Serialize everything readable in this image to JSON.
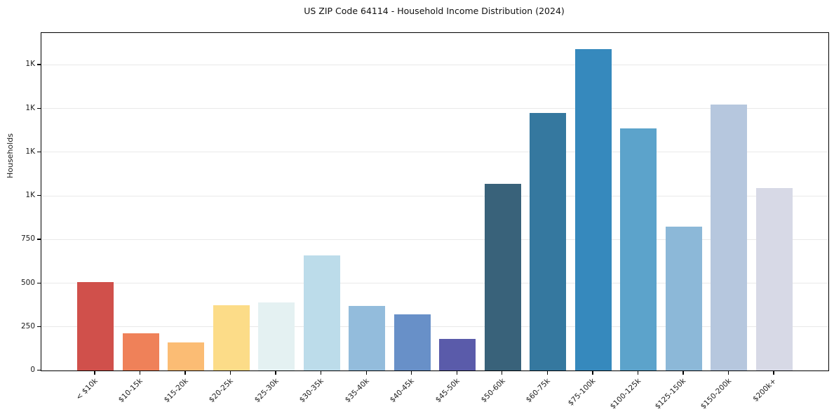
{
  "title": "US ZIP Code 64114 - Household Income Distribution (2024)",
  "chart_data": {
    "type": "bar",
    "title": "US ZIP Code 64114 - Household Income Distribution (2024)",
    "xlabel": "",
    "ylabel": "Households",
    "categories": [
      "< $10k",
      "$10-15k",
      "$15-20k",
      "$20-25k",
      "$25-30k",
      "$30-35k",
      "$35-40k",
      "$40-45k",
      "$45-50k",
      "$50-60k",
      "$60-75k",
      "$75-100k",
      "$100-125k",
      "$125-150k",
      "$150-200k",
      "$200k+"
    ],
    "values": [
      505,
      214,
      160,
      375,
      391,
      658,
      368,
      321,
      180,
      1070,
      1476,
      1840,
      1387,
      822,
      1521,
      1043
    ],
    "bar_colors": [
      "#d0504b",
      "#ef8159",
      "#fbbc74",
      "#fcdc88",
      "#e4f1f2",
      "#bcdcea",
      "#93bcdc",
      "#6890c8",
      "#5a5baa",
      "#39627a",
      "#35789f",
      "#3689bd",
      "#5ca3cb",
      "#8cb8d8",
      "#b6c7de",
      "#d7d9e6"
    ],
    "ylim": [
      0,
      1932
    ],
    "yticks": [
      {
        "value": 0,
        "label": "0"
      },
      {
        "value": 250,
        "label": "250"
      },
      {
        "value": 500,
        "label": "500"
      },
      {
        "value": 750,
        "label": "750"
      },
      {
        "value": 1000,
        "label": "1K"
      },
      {
        "value": 1250,
        "label": "1K"
      },
      {
        "value": 1500,
        "label": "1K"
      },
      {
        "value": 1750,
        "label": "1K"
      }
    ],
    "grid": "horizontal",
    "legend": "none",
    "background_color": "#ffffff",
    "axis_color": "#000000",
    "grid_color": "#e9e9e9"
  }
}
